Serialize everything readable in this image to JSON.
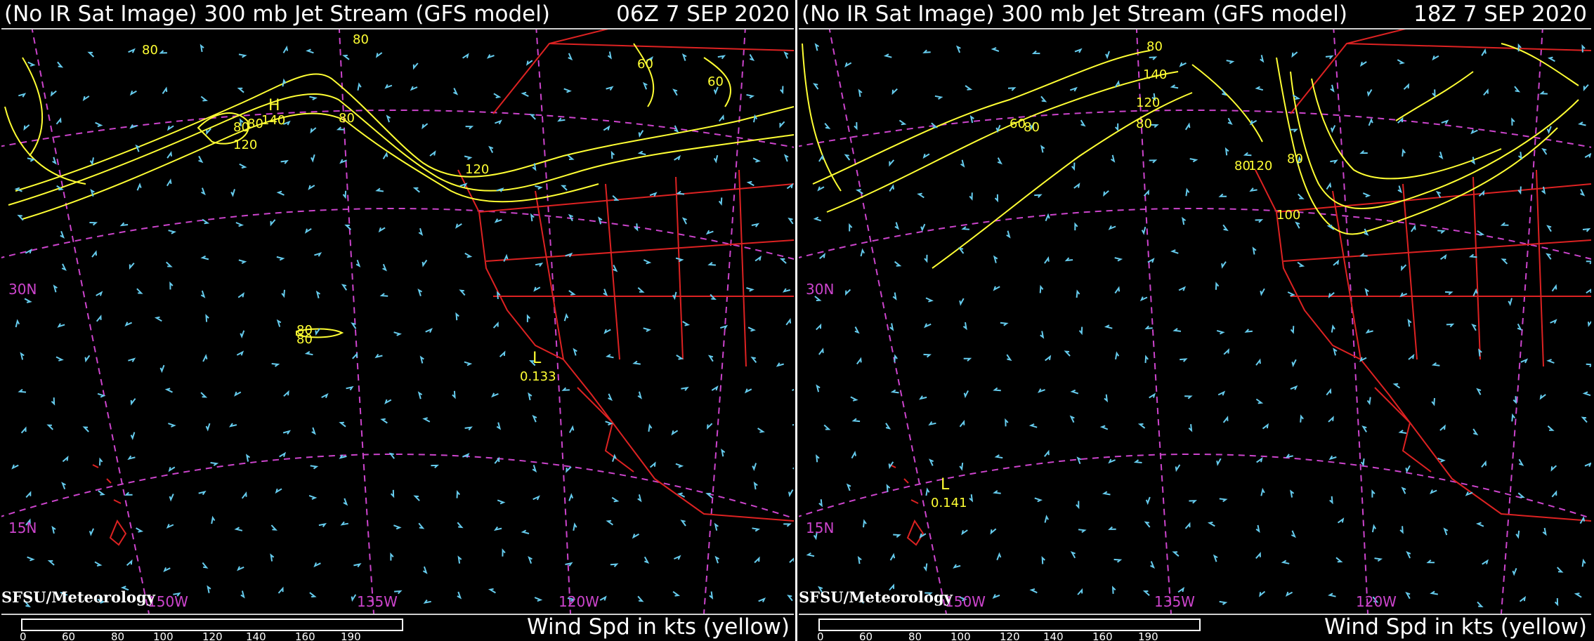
{
  "panels": [
    {
      "title": "(No IR Sat Image) 300 mb Jet Stream (GFS model)",
      "time": "06Z 7 SEP 2020",
      "credit": "SFSU/Meteorology",
      "legend": "Wind Spd in kts (yellow)",
      "scale_ticks": [
        "0",
        "60",
        "80",
        "100",
        "120",
        "140",
        "160",
        "190"
      ],
      "lat_labels": [
        "30N",
        "15N"
      ],
      "lon_labels": [
        "150W",
        "135W",
        "120W"
      ],
      "contour_labels": [
        "80",
        "80",
        "80",
        "80",
        "140",
        "120",
        "80",
        "80",
        "80",
        "120",
        "60",
        "60",
        "80",
        "80",
        "H",
        "L"
      ],
      "low_label": "L",
      "low_value": "0.133",
      "colors": {
        "contour": "#ffff33",
        "barb": "#66ccee",
        "border": "#dd2222",
        "grid": "#cc44cc"
      }
    },
    {
      "title": "(No IR Sat Image) 300 mb Jet Stream (GFS model)",
      "time": "18Z 7 SEP 2020",
      "credit": "SFSU/Meteorology",
      "legend": "Wind Spd in kts (yellow)",
      "scale_ticks": [
        "0",
        "60",
        "80",
        "100",
        "120",
        "140",
        "160",
        "190"
      ],
      "lat_labels": [
        "30N",
        "15N"
      ],
      "lon_labels": [
        "150W",
        "135W",
        "120W"
      ],
      "contour_labels": [
        "80",
        "140",
        "120",
        "80",
        "60",
        "80",
        "80",
        "120",
        "80",
        "100"
      ],
      "low_label": "L",
      "low_value": "0.141",
      "colors": {
        "contour": "#ffff33",
        "barb": "#66ccee",
        "border": "#dd2222",
        "grid": "#cc44cc"
      }
    }
  ]
}
